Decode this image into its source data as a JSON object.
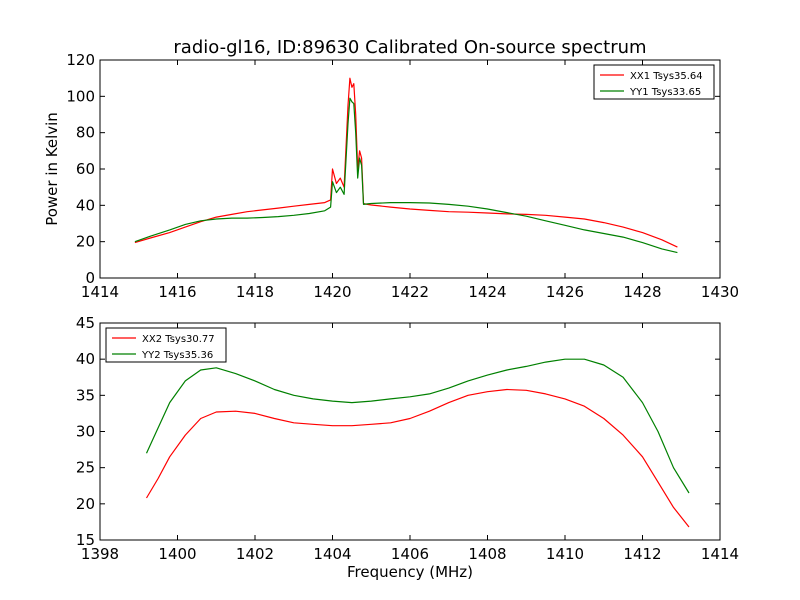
{
  "chart_data": [
    {
      "type": "line",
      "title": "radio-gl16, ID:89630 Calibrated On-source spectrum",
      "xlabel": "",
      "ylabel": "Power in Kelvin",
      "xlim": [
        1414,
        1430
      ],
      "ylim": [
        0,
        120
      ],
      "xticks": [
        "1414",
        "1416",
        "1418",
        "1420",
        "1422",
        "1424",
        "1426",
        "1428",
        "1430"
      ],
      "yticks": [
        "0",
        "20",
        "40",
        "60",
        "80",
        "100",
        "120"
      ],
      "legend_position": "top-right",
      "series": [
        {
          "name": "XX1 Tsys35.64",
          "color": "#ff0000",
          "x": [
            1414.9,
            1415.3,
            1415.8,
            1416.2,
            1416.6,
            1417.0,
            1417.4,
            1417.8,
            1418.2,
            1418.6,
            1419.0,
            1419.4,
            1419.8,
            1419.95,
            1420.0,
            1420.1,
            1420.2,
            1420.3,
            1420.4,
            1420.45,
            1420.5,
            1420.55,
            1420.6,
            1420.65,
            1420.7,
            1420.75,
            1420.8,
            1420.9,
            1421.0,
            1421.5,
            1422.0,
            1422.5,
            1423.0,
            1423.5,
            1424.0,
            1424.5,
            1425.0,
            1425.5,
            1426.0,
            1426.5,
            1427.0,
            1427.5,
            1428.0,
            1428.5,
            1428.9
          ],
          "y": [
            19.5,
            22.0,
            25.0,
            28.0,
            31.0,
            33.5,
            35.0,
            36.5,
            37.5,
            38.5,
            39.5,
            40.5,
            41.5,
            43.0,
            60.0,
            52.0,
            55.0,
            50.0,
            95.0,
            110.0,
            105.0,
            107.0,
            90.0,
            60.0,
            70.0,
            66.0,
            41.0,
            40.5,
            40.2,
            39.0,
            38.0,
            37.2,
            36.5,
            36.2,
            35.8,
            35.3,
            35.0,
            34.5,
            33.5,
            32.5,
            30.5,
            28.0,
            25.0,
            21.0,
            17.0
          ]
        },
        {
          "name": "YY1 Tsys33.65",
          "color": "#008000",
          "x": [
            1414.9,
            1415.3,
            1415.8,
            1416.2,
            1416.6,
            1417.0,
            1417.4,
            1417.8,
            1418.2,
            1418.6,
            1419.0,
            1419.4,
            1419.8,
            1419.95,
            1420.0,
            1420.1,
            1420.2,
            1420.3,
            1420.4,
            1420.45,
            1420.5,
            1420.55,
            1420.6,
            1420.65,
            1420.7,
            1420.75,
            1420.8,
            1420.9,
            1421.0,
            1421.5,
            1422.0,
            1422.5,
            1423.0,
            1423.5,
            1424.0,
            1424.5,
            1425.0,
            1425.5,
            1426.0,
            1426.5,
            1427.0,
            1427.5,
            1428.0,
            1428.5,
            1428.9
          ],
          "y": [
            20.0,
            23.0,
            26.5,
            29.5,
            31.5,
            32.5,
            33.0,
            33.0,
            33.3,
            33.8,
            34.5,
            35.5,
            37.0,
            39.0,
            53.0,
            47.0,
            50.0,
            46.0,
            85.0,
            99.0,
            97.0,
            96.0,
            80.0,
            55.0,
            66.0,
            62.0,
            40.5,
            40.8,
            41.0,
            41.5,
            41.5,
            41.3,
            40.5,
            39.5,
            38.0,
            36.0,
            34.0,
            31.5,
            29.0,
            26.5,
            24.5,
            22.5,
            19.5,
            16.0,
            14.0
          ]
        }
      ]
    },
    {
      "type": "line",
      "title": "",
      "xlabel": "Frequency (MHz)",
      "ylabel": "",
      "xlim": [
        1398,
        1414
      ],
      "ylim": [
        15,
        45
      ],
      "xticks": [
        "1398",
        "1400",
        "1402",
        "1404",
        "1406",
        "1408",
        "1410",
        "1412",
        "1414"
      ],
      "yticks": [
        "15",
        "20",
        "25",
        "30",
        "35",
        "40",
        "45"
      ],
      "legend_position": "top-left",
      "series": [
        {
          "name": "XX2 Tsys30.77",
          "color": "#ff0000",
          "x": [
            1399.2,
            1399.5,
            1399.8,
            1400.2,
            1400.6,
            1401.0,
            1401.5,
            1402.0,
            1402.5,
            1403.0,
            1403.5,
            1404.0,
            1404.5,
            1405.0,
            1405.5,
            1406.0,
            1406.5,
            1407.0,
            1407.5,
            1408.0,
            1408.5,
            1409.0,
            1409.5,
            1410.0,
            1410.5,
            1411.0,
            1411.5,
            1412.0,
            1412.4,
            1412.8,
            1413.2
          ],
          "y": [
            20.8,
            23.5,
            26.5,
            29.5,
            31.8,
            32.7,
            32.8,
            32.5,
            31.8,
            31.2,
            31.0,
            30.8,
            30.8,
            31.0,
            31.2,
            31.8,
            32.8,
            34.0,
            35.0,
            35.5,
            35.8,
            35.7,
            35.2,
            34.5,
            33.5,
            31.8,
            29.5,
            26.5,
            23.0,
            19.5,
            16.8
          ]
        },
        {
          "name": "YY2 Tsys35.36",
          "color": "#008000",
          "x": [
            1399.2,
            1399.5,
            1399.8,
            1400.2,
            1400.6,
            1401.0,
            1401.5,
            1402.0,
            1402.5,
            1403.0,
            1403.5,
            1404.0,
            1404.5,
            1405.0,
            1405.5,
            1406.0,
            1406.5,
            1407.0,
            1407.5,
            1408.0,
            1408.5,
            1409.0,
            1409.5,
            1410.0,
            1410.5,
            1411.0,
            1411.5,
            1412.0,
            1412.4,
            1412.8,
            1413.2
          ],
          "y": [
            27.0,
            30.5,
            34.0,
            37.0,
            38.5,
            38.8,
            38.0,
            37.0,
            35.8,
            35.0,
            34.5,
            34.2,
            34.0,
            34.2,
            34.5,
            34.8,
            35.2,
            36.0,
            37.0,
            37.8,
            38.5,
            39.0,
            39.6,
            40.0,
            40.0,
            39.2,
            37.5,
            34.0,
            30.0,
            25.0,
            21.5
          ]
        }
      ]
    }
  ]
}
